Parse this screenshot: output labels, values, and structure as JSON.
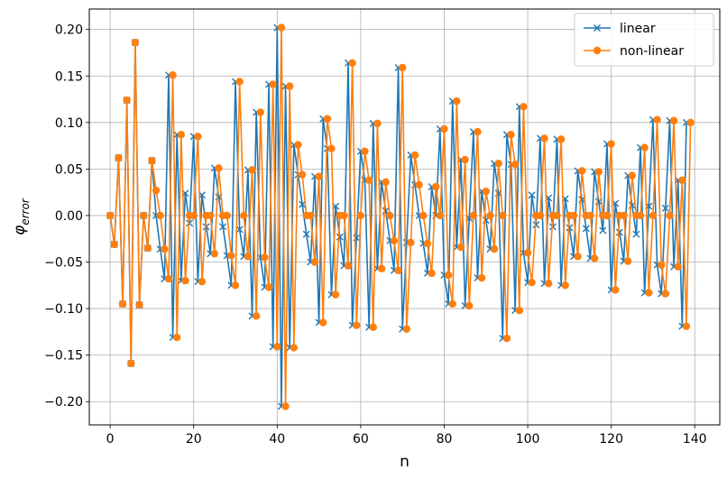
{
  "chart_data": {
    "type": "line",
    "title": "",
    "xlabel": "n",
    "ylabel": "φ",
    "ylabel_sub": "error",
    "xlim": [
      -5,
      146
    ],
    "ylim": [
      -0.225,
      0.222
    ],
    "xticks": [
      0,
      20,
      40,
      60,
      80,
      100,
      120,
      140
    ],
    "xtick_labels": [
      "0",
      "20",
      "40",
      "60",
      "80",
      "100",
      "120",
      "140"
    ],
    "yticks": [
      -0.2,
      -0.15,
      -0.1,
      -0.05,
      0.0,
      0.05,
      0.1,
      0.15,
      0.2
    ],
    "ytick_labels": [
      "−0.20",
      "−0.15",
      "−0.10",
      "−0.05",
      "0.00",
      "0.05",
      "0.10",
      "0.15",
      "0.20"
    ],
    "grid": true,
    "legend_position": "top-right",
    "series": [
      {
        "name": "linear",
        "color": "#1f77b4",
        "marker": "x",
        "values": [
          0.0,
          -0.031,
          0.062,
          -0.095,
          0.124,
          -0.159,
          0.186,
          -0.096,
          0.0,
          -0.035,
          0.059,
          0.0,
          -0.036,
          -0.068,
          0.151,
          -0.131,
          0.087,
          -0.07,
          0.024,
          -0.008,
          0.085,
          -0.071,
          0.022,
          -0.012,
          -0.041,
          0.051,
          0.02,
          -0.012,
          -0.043,
          -0.075,
          0.144,
          -0.015,
          -0.044,
          0.049,
          -0.108,
          0.111,
          -0.045,
          -0.077,
          0.141,
          -0.141,
          0.202,
          -0.205,
          0.139,
          -0.142,
          0.076,
          0.044,
          0.012,
          -0.02,
          -0.05,
          0.042,
          -0.115,
          0.104,
          0.072,
          -0.085,
          0.01,
          -0.023,
          -0.054,
          0.164,
          -0.118,
          -0.024,
          0.069,
          0.038,
          -0.12,
          0.099,
          -0.057,
          0.036,
          0.005,
          -0.027,
          -0.059,
          0.159,
          -0.122,
          -0.029,
          0.065,
          0.033,
          0.0,
          -0.03,
          -0.062,
          0.031,
          0.0,
          0.093,
          -0.064,
          -0.095,
          0.123,
          -0.034,
          0.06,
          -0.097,
          -0.003,
          0.09,
          -0.067,
          0.026,
          -0.005,
          -0.036,
          0.056,
          0.024,
          -0.132,
          0.087,
          0.055,
          -0.102,
          0.117,
          -0.04,
          -0.072,
          0.022,
          -0.01,
          0.083,
          -0.073,
          0.019,
          -0.012,
          0.082,
          -0.075,
          0.018,
          -0.013,
          -0.044,
          0.048,
          0.017,
          -0.014,
          -0.046,
          0.047,
          0.015,
          -0.016,
          0.077,
          -0.08,
          0.013,
          -0.018,
          -0.049,
          0.043,
          0.011,
          -0.02,
          0.073,
          -0.083,
          0.01,
          0.103,
          -0.053,
          -0.084,
          0.008,
          0.102,
          -0.055,
          0.038,
          -0.119,
          0.1
        ]
      },
      {
        "name": "non-linear",
        "color": "#ff7f0e",
        "marker": "o",
        "values": [
          0.0,
          -0.031,
          0.062,
          -0.095,
          0.124,
          -0.159,
          0.186,
          -0.096,
          0.0,
          -0.035,
          0.059,
          0.027,
          0.0,
          -0.036,
          -0.068,
          0.151,
          -0.131,
          0.087,
          -0.07,
          0.0,
          0.0,
          0.085,
          -0.071,
          0.0,
          0.0,
          -0.041,
          0.051,
          0.0,
          0.0,
          -0.043,
          -0.075,
          0.144,
          0.0,
          -0.044,
          0.049,
          -0.108,
          0.111,
          -0.045,
          -0.077,
          0.141,
          -0.141,
          0.202,
          -0.205,
          0.139,
          -0.142,
          0.076,
          0.044,
          0.0,
          0.0,
          -0.05,
          0.042,
          -0.115,
          0.104,
          0.072,
          -0.085,
          0.0,
          0.0,
          -0.054,
          0.164,
          -0.118,
          0.0,
          0.069,
          0.038,
          -0.12,
          0.099,
          -0.057,
          0.036,
          0.0,
          -0.027,
          -0.059,
          0.159,
          -0.122,
          -0.029,
          0.065,
          0.033,
          0.0,
          -0.03,
          -0.062,
          0.031,
          0.0,
          0.093,
          -0.064,
          -0.095,
          0.123,
          -0.034,
          0.06,
          -0.097,
          0.0,
          0.09,
          -0.067,
          0.026,
          0.0,
          -0.036,
          0.056,
          0.0,
          -0.132,
          0.087,
          0.055,
          -0.102,
          0.117,
          -0.04,
          -0.072,
          0.0,
          0.0,
          0.083,
          -0.073,
          0.0,
          0.0,
          0.082,
          -0.075,
          0.0,
          0.0,
          -0.044,
          0.048,
          0.0,
          0.0,
          -0.046,
          0.047,
          0.0,
          0.0,
          0.077,
          -0.08,
          0.0,
          0.0,
          -0.049,
          0.043,
          0.0,
          0.0,
          0.073,
          -0.083,
          0.0,
          0.103,
          -0.053,
          -0.084,
          0.0,
          0.102,
          -0.055,
          0.038,
          -0.119,
          0.1
        ]
      }
    ]
  }
}
